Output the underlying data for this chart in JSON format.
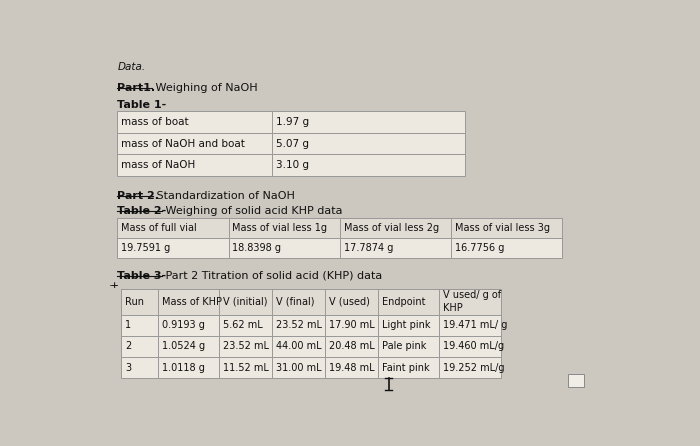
{
  "background_color": "#ccc8c0",
  "table_bg": "#ede8e0",
  "header_bg": "#e0dbd3",
  "text_color": "#111111",
  "font_size": 7.5,
  "header_text": "Data.",
  "part1_label": "Part1.",
  "part1_text": " Weighing of NaOH",
  "table1_title": "Table 1-",
  "table1_rows": [
    [
      "mass of boat",
      "1.97 g"
    ],
    [
      "mass of NaOH and boat",
      "5.07 g"
    ],
    [
      "mass of NaOH",
      "3.10 g"
    ]
  ],
  "part2_label": "Part 2.",
  "part2_text": " Standardization of NaOH",
  "table2_title": "Table 2-",
  "table2_title_rest": " Weighing of solid acid KHP data",
  "table2_headers": [
    "Mass of full vial",
    "Mass of vial less 1g",
    "Mass of vial less 2g",
    "Mass of vial less 3g"
  ],
  "table2_rows": [
    [
      "19.7591 g",
      "18.8398 g",
      "17.7874 g",
      "16.7756 g"
    ]
  ],
  "table3_title": "Table 3-",
  "table3_title_rest": " Part 2 Titration of solid acid (KHP) data",
  "table3_headers": [
    "Run",
    "Mass of KHP",
    "V (initial)",
    "V (final)",
    "V (used)",
    "Endpoint",
    "V used/ g of\nKHP"
  ],
  "table3_rows": [
    [
      "1",
      "0.9193 g",
      "5.62 mL",
      "23.52 mL",
      "17.90 mL",
      "Light pink",
      "19.471 mL/ g"
    ],
    [
      "2",
      "1.0524 g",
      "23.52 mL",
      "44.00 mL",
      "20.48 mL",
      "Pale pink",
      "19.460 mL/g"
    ],
    [
      "3",
      "1.0118 g",
      "11.52 mL",
      "31.00 mL",
      "19.48 mL",
      "Faint pink",
      "19.252 mL/g"
    ]
  ]
}
